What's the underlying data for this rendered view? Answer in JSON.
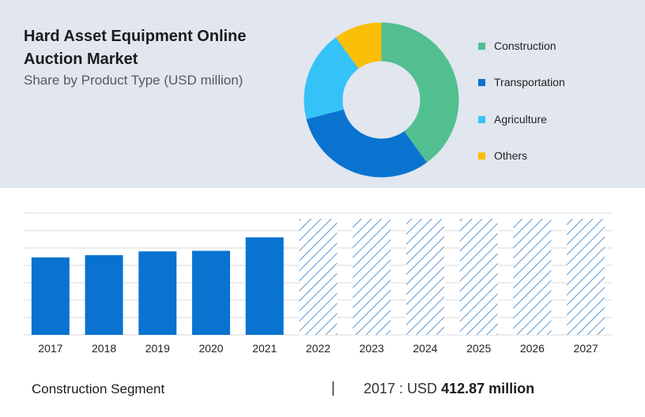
{
  "header": {
    "title": "Hard Asset Equipment Online Auction Market",
    "subtitle": "Share by Product Type (USD million)"
  },
  "footer": {
    "segment_label": "Construction Segment",
    "separator": "|",
    "year_prefix": "2017 : USD",
    "value_text": "412.87 million"
  },
  "colors": {
    "panel_background": "#e1e6ef",
    "bar_actual": "#0a73d0",
    "bar_forecast_hatch": "#2f7fc8",
    "gridline": "#d8d8d8"
  },
  "chart_data": [
    {
      "type": "pie",
      "style": "donut",
      "categories": [
        "Construction",
        "Transportation",
        "Agriculture",
        "Others"
      ],
      "values": [
        40,
        31,
        19,
        10
      ],
      "colors": [
        "#52bf90",
        "#0a73d0",
        "#35c2f7",
        "#fbbf07"
      ],
      "legend_position": "right"
    },
    {
      "type": "bar",
      "categories": [
        "2017",
        "2018",
        "2019",
        "2020",
        "2021",
        "2022",
        "2023",
        "2024",
        "2025",
        "2026",
        "2027"
      ],
      "values": [
        412.87,
        425,
        445,
        448,
        520,
        null,
        null,
        null,
        null,
        null,
        null
      ],
      "forecast_categories": [
        "2022",
        "2023",
        "2024",
        "2025",
        "2026",
        "2027"
      ],
      "forecast_style": "hatched",
      "ylim": [
        0,
        640
      ],
      "grid": true,
      "xlabel": "",
      "ylabel": ""
    }
  ]
}
